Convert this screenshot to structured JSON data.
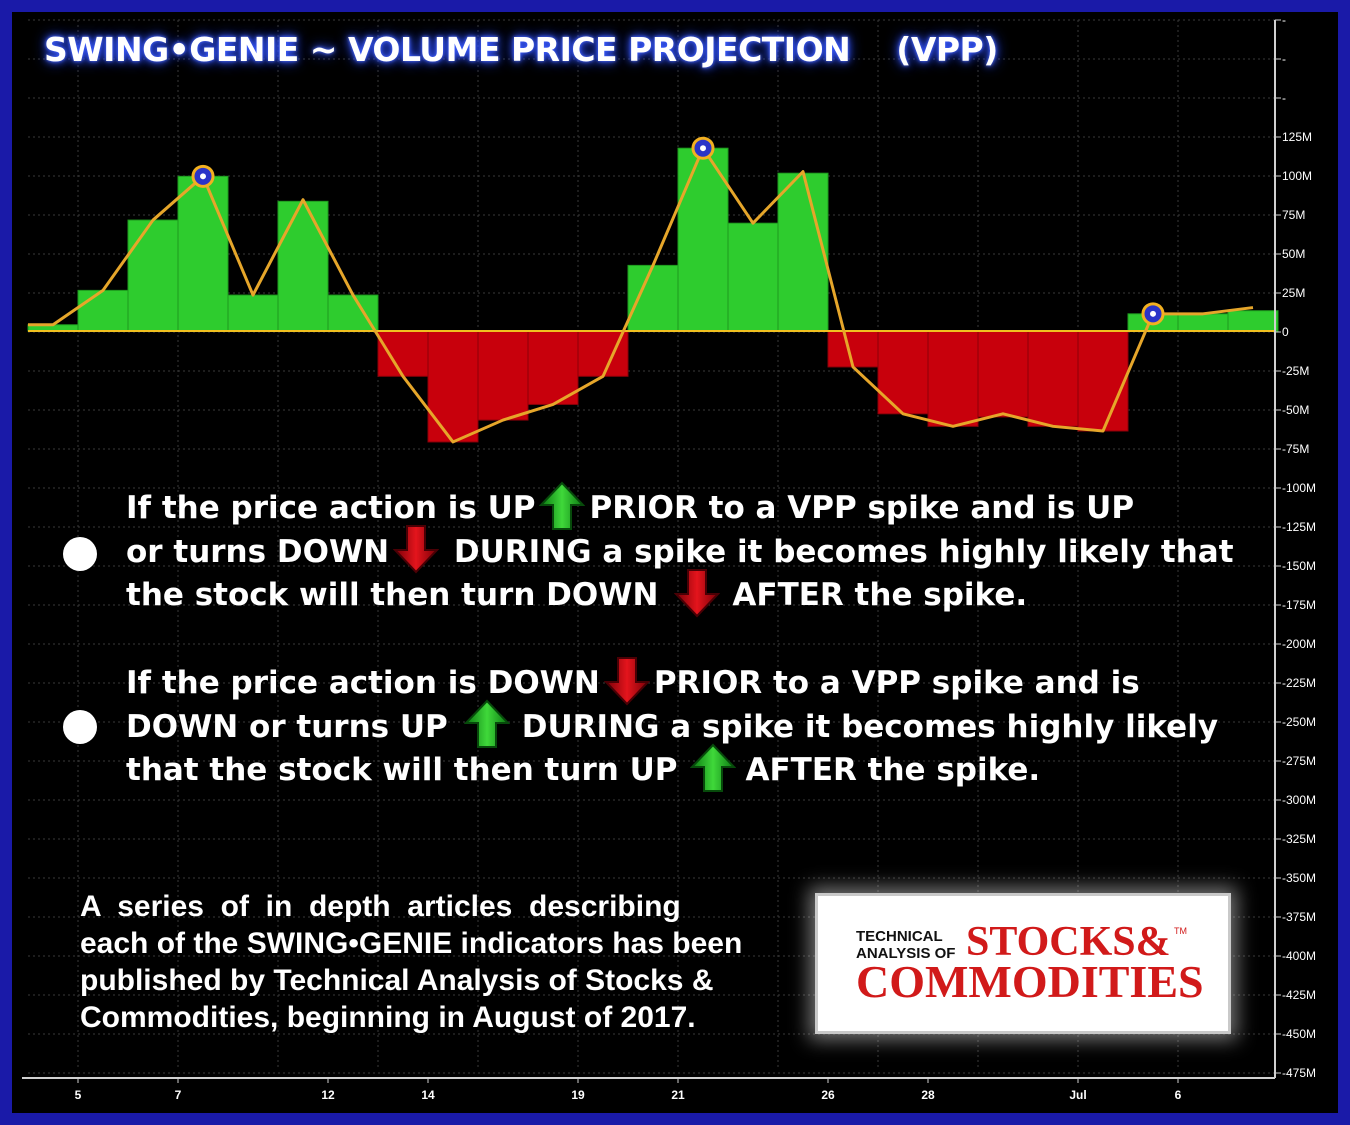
{
  "title": {
    "main": "SWING•GENIE ~ VOLUME PRICE PROJECTION",
    "tag": "(VPP)"
  },
  "chart_data": {
    "type": "bar",
    "title": "SWING•GENIE ~ VOLUME PRICE PROJECTION (VPP)",
    "xlabel": "",
    "ylabel": "",
    "ylim": [
      -475,
      150
    ],
    "y_unit": "M",
    "y_ticks": [
      "-",
      "-",
      "-",
      "125M",
      "100M",
      "75M",
      "50M",
      "25M",
      "0",
      "-25M",
      "-50M",
      "-75M",
      "-100M",
      "-125M",
      "-150M",
      "-175M",
      "-200M",
      "-225M",
      "-250M",
      "-275M",
      "-300M",
      "-325M",
      "-350M",
      "-375M",
      "-400M",
      "-425M",
      "-450M",
      "-475M"
    ],
    "x_ticks": [
      "5",
      "7",
      "12",
      "14",
      "19",
      "21",
      "26",
      "28",
      "Jul",
      "6"
    ],
    "x_tick_bar_index": [
      1,
      3,
      6,
      8,
      11,
      13,
      16,
      18,
      21,
      23
    ],
    "grid": true,
    "bar_values": [
      4,
      26,
      71,
      99,
      23,
      83,
      23,
      -29,
      -71,
      -57,
      -47,
      -29,
      42,
      117,
      69,
      101,
      -23,
      -53,
      -61,
      -55,
      -61,
      -64,
      11,
      11,
      13
    ],
    "line_values": [
      4,
      26,
      71,
      99,
      23,
      84,
      23,
      -29,
      -71,
      -57,
      -47,
      -29,
      42,
      117,
      69,
      102,
      -23,
      -53,
      -61,
      -53,
      -61,
      -64,
      11,
      11,
      15
    ],
    "spike_markers": [
      3,
      13,
      22
    ],
    "colors": {
      "positive": "#2ecc2e",
      "negative": "#c8000c",
      "line": "#e6a62a",
      "zero": "#f0c020",
      "frame": "#1a1aa8",
      "marker_ring": "#f2b020",
      "marker_fill": "#2a34c8"
    }
  },
  "bullets": [
    {
      "line1": {
        "a": "If the price action is UP",
        "arrow1": "up",
        "b": "PRIOR to a VPP spike  and is UP"
      },
      "line2": {
        "a": "or turns DOWN",
        "arrow1": "down",
        "b": " DURING a spike it becomes highly likely that"
      },
      "line3": {
        "a": "the stock will then turn DOWN",
        "arrow1": "down",
        "b": "AFTER the spike."
      }
    },
    {
      "line1": {
        "a": "If the price action is DOWN",
        "arrow1": "down",
        "b": "PRIOR to a VPP spike and is"
      },
      "line2": {
        "a": "DOWN or turns UP",
        "arrow1": "up",
        "b": "DURING a spike it becomes highly likely"
      },
      "line3": {
        "a": "that the stock will then turn UP",
        "arrow1": "up",
        "b": "AFTER the spike."
      }
    }
  ],
  "note": {
    "line1": "A  series  of  in  depth  articles  describing",
    "line2": "each of the SWING•GENIE indicators has been",
    "line3": "published by Technical Analysis of Stocks &",
    "line4": "Commodities, beginning in August of 2017."
  },
  "logo": {
    "small1": "TECHNICAL",
    "small2": "ANALYSIS OF",
    "big1": "STOCKS&",
    "big2": "COMMODITIES",
    "tm": "TM"
  },
  "icons": {
    "up_arrow": "green-up-arrow-icon",
    "down_arrow": "red-down-arrow-icon",
    "bullet": "white-bullet-dot"
  }
}
